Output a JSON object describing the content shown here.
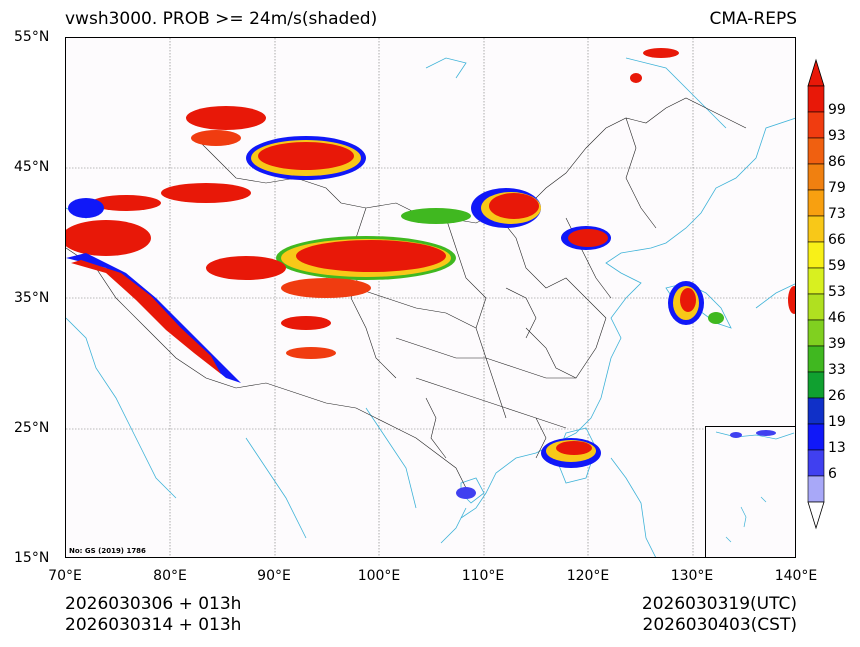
{
  "header": {
    "title_left": "vwsh3000. PROB >= 24m/s(shaded)",
    "title_right": "CMA-REPS"
  },
  "axes": {
    "lat_labels": [
      "55°N",
      "45°N",
      "35°N",
      "25°N",
      "15°N"
    ],
    "lon_labels": [
      "70°E",
      "80°E",
      "90°E",
      "100°E",
      "110°E",
      "120°E",
      "130°E",
      "140°E"
    ]
  },
  "map": {
    "note": "No: GS (2019) 1786",
    "coast_color": "#3fb3d8",
    "border_color": "#222222"
  },
  "colorbar": {
    "labels": [
      "99",
      "93",
      "86",
      "79",
      "73",
      "66",
      "59",
      "53",
      "46",
      "39",
      "33",
      "26",
      "19",
      "13",
      "6"
    ],
    "colors": [
      "#e81808",
      "#f03c10",
      "#f06010",
      "#f08010",
      "#f8a010",
      "#f8c818",
      "#f8f018",
      "#d8f020",
      "#b0e020",
      "#80d020",
      "#40b820",
      "#10a030",
      "#1030c8",
      "#1018f8",
      "#4040f0",
      "#a8a8f8"
    ],
    "top_color": "#e81808",
    "bottom_color": "#ffffff"
  },
  "footer": {
    "init_line1": "2026030306  +  013h",
    "init_line2": "2026030314  +  013h",
    "valid_utc": "2026030319(UTC)",
    "valid_cst": "2026030403(CST)"
  }
}
